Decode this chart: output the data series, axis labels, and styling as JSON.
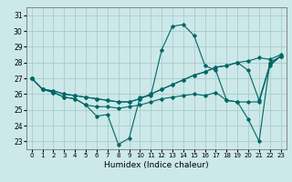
{
  "xlabel": "Humidex (Indice chaleur)",
  "xlim": [
    -0.5,
    23.5
  ],
  "ylim": [
    22.5,
    31.5
  ],
  "yticks": [
    23,
    24,
    25,
    26,
    27,
    28,
    29,
    30,
    31
  ],
  "xticks": [
    0,
    1,
    2,
    3,
    4,
    5,
    6,
    7,
    8,
    9,
    10,
    11,
    12,
    13,
    14,
    15,
    16,
    17,
    18,
    19,
    20,
    21,
    22,
    23
  ],
  "bg_color": "#cce8e8",
  "grid_color": "#aacccc",
  "line_color": "#006666",
  "lines": [
    [
      27.0,
      26.3,
      26.1,
      25.8,
      25.7,
      25.3,
      24.6,
      24.7,
      22.8,
      23.2,
      25.8,
      25.9,
      28.8,
      30.3,
      30.4,
      29.7,
      27.8,
      27.5,
      25.6,
      25.5,
      24.4,
      23.0,
      28.0,
      28.4
    ],
    [
      27.0,
      26.3,
      26.1,
      25.8,
      25.7,
      25.3,
      25.2,
      25.2,
      25.1,
      25.2,
      25.3,
      25.5,
      25.7,
      25.8,
      25.9,
      26.0,
      25.9,
      26.1,
      25.6,
      25.5,
      25.5,
      25.5,
      27.8,
      28.4
    ],
    [
      27.0,
      26.3,
      26.2,
      26.0,
      25.9,
      25.8,
      25.7,
      25.6,
      25.5,
      25.5,
      25.7,
      26.0,
      26.3,
      26.6,
      26.9,
      27.2,
      27.4,
      27.7,
      27.8,
      28.0,
      28.1,
      28.3,
      28.2,
      28.5
    ],
    [
      27.0,
      26.3,
      26.2,
      26.0,
      25.9,
      25.8,
      25.7,
      25.6,
      25.5,
      25.5,
      25.7,
      26.0,
      26.3,
      26.6,
      26.9,
      27.2,
      27.4,
      27.7,
      27.8,
      28.0,
      27.5,
      25.6,
      27.9,
      28.4
    ]
  ]
}
